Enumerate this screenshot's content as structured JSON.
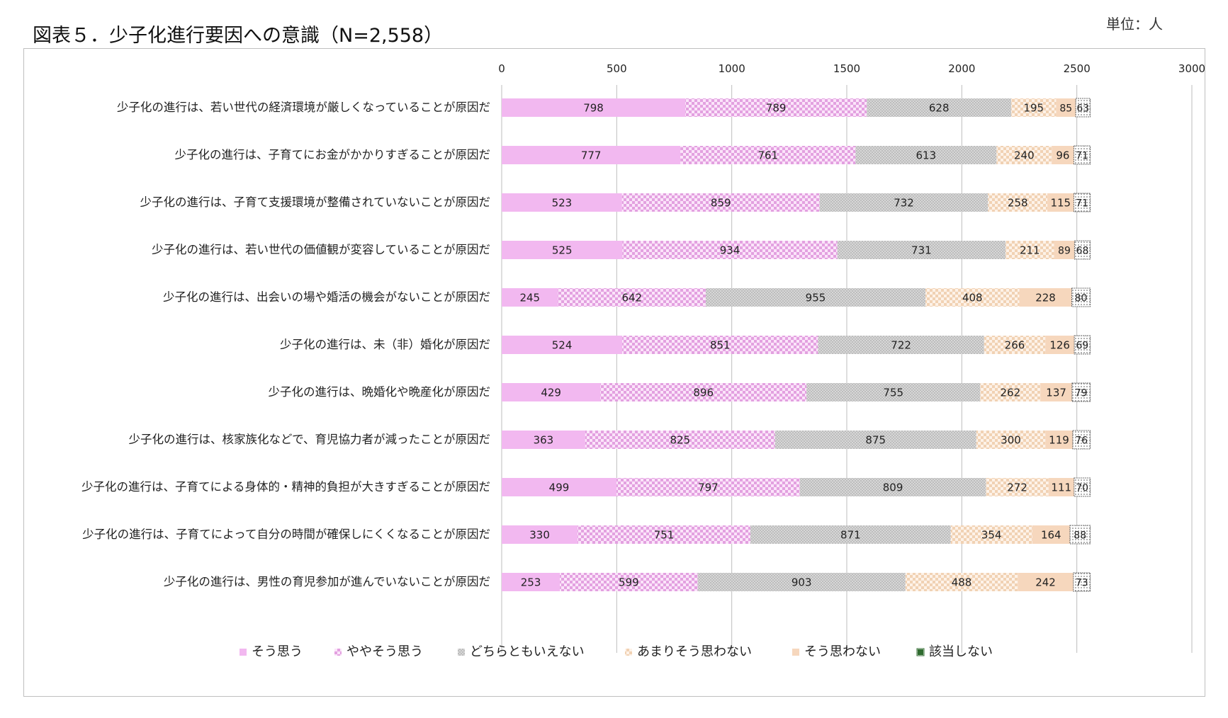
{
  "page": {
    "title": "図表５．少子化進行要因への意識（N=2,558）",
    "unit": "単位：人"
  },
  "chart_data": {
    "type": "bar",
    "orientation": "horizontal",
    "stacked": true,
    "xlim": [
      0,
      3000
    ],
    "xticks": [
      0,
      500,
      1000,
      1500,
      2000,
      2500,
      3000
    ],
    "grid": true,
    "legend_position": "bottom",
    "categories": [
      "少子化の進行は、若い世代の経済環境が厳しくなっていることが原因だ",
      "少子化の進行は、子育てにお金がかかりすぎることが原因だ",
      "少子化の進行は、子育て支援環境が整備されていないことが原因だ",
      "少子化の進行は、若い世代の価値観が変容していることが原因だ",
      "少子化の進行は、出会いの場や婚活の機会がないことが原因だ",
      "少子化の進行は、未（非）婚化が原因だ",
      "少子化の進行は、晩婚化や晩産化が原因だ",
      "少子化の進行は、核家族化などで、育児協力者が減ったことが原因だ",
      "少子化の進行は、子育てによる身体的・精神的負担が大きすぎることが原因だ",
      "少子化の進行は、子育てによって自分の時間が確保しにくくなることが原因だ",
      "少子化の進行は、男性の育児参加が進んでいないことが原因だ"
    ],
    "series": [
      {
        "name": "そう思う",
        "color": "#f2b8f0",
        "pattern": "solid",
        "values": [
          798,
          777,
          523,
          525,
          245,
          524,
          429,
          363,
          499,
          330,
          253
        ]
      },
      {
        "name": "ややそう思う",
        "color": "#e6a6e3",
        "pattern": "checker",
        "values": [
          789,
          761,
          859,
          934,
          642,
          851,
          896,
          825,
          797,
          751,
          599
        ]
      },
      {
        "name": "どちらともいえない",
        "color": "#cfcfcf",
        "pattern": "fine-dots",
        "values": [
          628,
          613,
          732,
          731,
          955,
          722,
          755,
          875,
          809,
          871,
          903
        ]
      },
      {
        "name": "あまりそう思わない",
        "color": "#f3d9bf",
        "pattern": "checker",
        "values": [
          195,
          240,
          258,
          211,
          408,
          266,
          262,
          300,
          272,
          354,
          488
        ]
      },
      {
        "name": "そう思わない",
        "color": "#f6d7bd",
        "pattern": "solid",
        "values": [
          85,
          96,
          115,
          89,
          228,
          126,
          137,
          119,
          111,
          164,
          242
        ]
      },
      {
        "name": "該当しない",
        "color": "#2f6b2f",
        "pattern": "dots-outline",
        "values": [
          63,
          71,
          71,
          68,
          80,
          69,
          79,
          76,
          70,
          88,
          73
        ]
      }
    ]
  }
}
